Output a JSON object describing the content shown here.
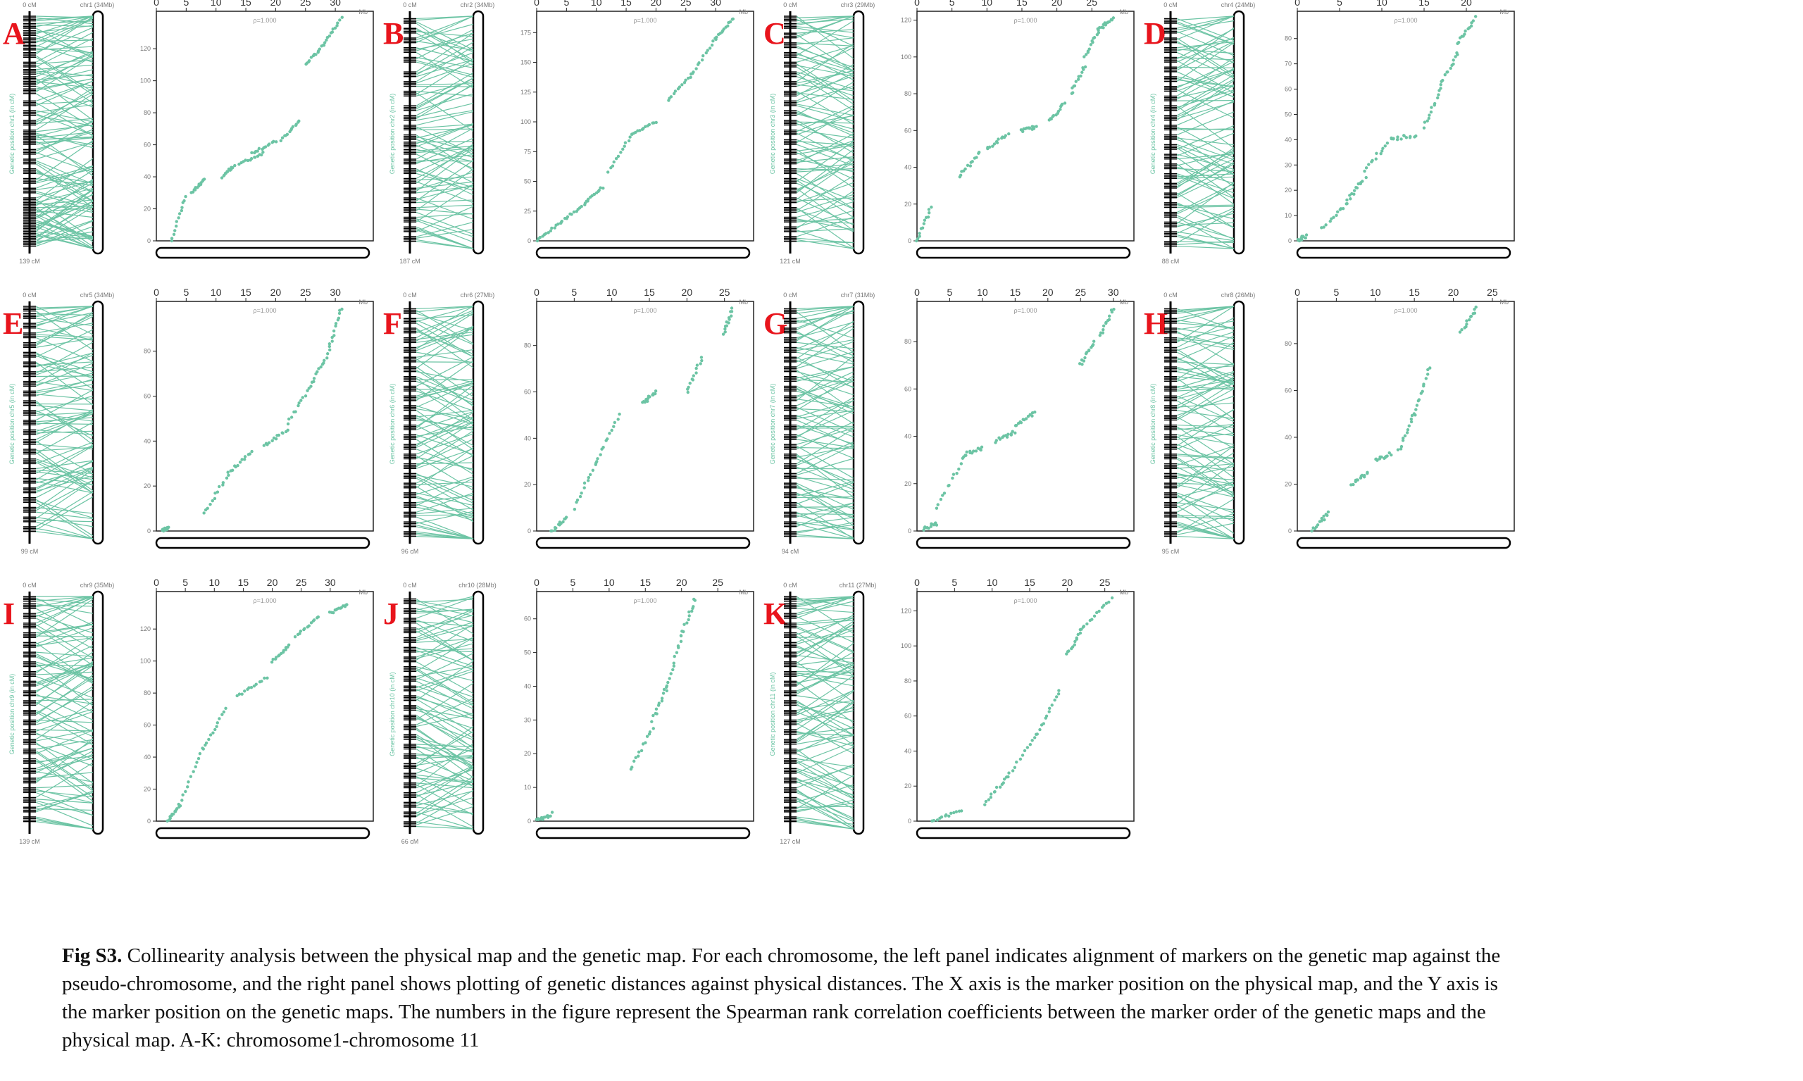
{
  "figure": {
    "color": "#6cc4a4",
    "rho_label": "ρ=1.000",
    "panels": [
      {
        "letter": "A",
        "chr_label": "chr1 (34Mb)",
        "top_cm": "0 cM",
        "bottom_cm": "139 cM",
        "ylabel": "Genetic position chr1 (in cM)",
        "xticks": [
          0,
          5,
          10,
          15,
          20,
          25,
          30
        ],
        "xmax": 34,
        "yticks": [
          0,
          20,
          40,
          60,
          80,
          100,
          120
        ],
        "ymax": 139,
        "segments": [
          [
            2.5,
            0,
            5,
            28
          ],
          [
            6,
            30,
            8,
            38
          ],
          [
            11,
            40,
            13,
            47
          ],
          [
            14,
            48,
            18,
            55
          ],
          [
            16,
            55,
            20,
            62
          ],
          [
            21,
            63,
            24,
            75
          ],
          [
            25,
            110,
            28,
            122
          ],
          [
            28,
            123,
            31,
            139
          ]
        ],
        "markers": [
          0.03,
          0.06,
          0.09,
          0.12,
          0.15,
          0.18,
          0.22,
          0.25,
          0.28,
          0.3,
          0.33,
          0.38,
          0.42,
          0.46,
          0.5,
          0.52,
          0.54,
          0.58,
          0.62,
          0.66,
          0.7,
          0.74,
          0.78,
          0.8,
          0.82,
          0.84,
          0.86,
          0.88,
          0.9,
          0.92,
          0.94,
          0.96
        ]
      },
      {
        "letter": "B",
        "chr_label": "chr2 (34Mb)",
        "top_cm": "0 cM",
        "bottom_cm": "187 cM",
        "ylabel": "Genetic position chr2 (in cM)",
        "xticks": [
          0,
          5,
          10,
          15,
          20,
          25,
          30
        ],
        "xmax": 34,
        "yticks": [
          0,
          25,
          50,
          75,
          100,
          125,
          150,
          175
        ],
        "ymax": 187,
        "segments": [
          [
            0,
            0,
            4,
            15
          ],
          [
            4,
            16,
            8,
            30
          ],
          [
            8,
            32,
            11,
            45
          ],
          [
            12,
            58,
            16,
            90
          ],
          [
            16,
            90,
            20,
            100
          ],
          [
            22,
            118,
            26,
            140
          ],
          [
            26,
            140,
            30,
            170
          ],
          [
            30,
            170,
            33,
            187
          ]
        ],
        "markers": [
          0.04,
          0.08,
          0.12,
          0.16,
          0.2,
          0.26,
          0.3,
          0.34,
          0.4,
          0.44,
          0.48,
          0.52,
          0.55,
          0.58,
          0.62,
          0.66,
          0.7,
          0.74,
          0.78,
          0.82,
          0.86,
          0.9,
          0.94
        ]
      },
      {
        "letter": "C",
        "chr_label": "chr3 (29Mb)",
        "top_cm": "0 cM",
        "bottom_cm": "121 cM",
        "ylabel": "Genetic position chr3 (in cM)",
        "xticks": [
          0,
          5,
          10,
          15,
          20,
          25
        ],
        "xmax": 29,
        "yticks": [
          0,
          20,
          40,
          60,
          80,
          100,
          120
        ],
        "ymax": 121,
        "segments": [
          [
            0,
            0,
            2,
            18
          ],
          [
            6,
            35,
            9,
            48
          ],
          [
            10,
            50,
            13,
            58
          ],
          [
            15,
            60,
            17,
            62
          ],
          [
            19,
            65,
            21,
            75
          ],
          [
            22,
            80,
            24,
            95
          ],
          [
            24,
            100,
            26,
            115
          ],
          [
            26,
            115,
            28,
            121
          ]
        ],
        "markers": [
          0.03,
          0.06,
          0.1,
          0.14,
          0.18,
          0.22,
          0.26,
          0.3,
          0.34,
          0.38,
          0.42,
          0.46,
          0.5,
          0.54,
          0.58,
          0.62,
          0.66,
          0.7,
          0.74,
          0.78,
          0.82,
          0.86,
          0.9,
          0.94
        ]
      },
      {
        "letter": "D",
        "chr_label": "chr4 (24Mb)",
        "top_cm": "0 cM",
        "bottom_cm": "88 cM",
        "ylabel": "Genetic position chr4 (in cM)",
        "xticks": [
          0,
          5,
          10,
          15,
          20
        ],
        "xmax": 24,
        "yticks": [
          0,
          10,
          20,
          30,
          40,
          50,
          60,
          70,
          80
        ],
        "ymax": 88,
        "segments": [
          [
            0,
            0,
            1,
            2
          ],
          [
            3,
            5,
            6,
            15
          ],
          [
            6,
            16,
            8,
            25
          ],
          [
            8,
            28,
            11,
            40
          ],
          [
            11,
            40,
            14,
            42
          ],
          [
            15,
            45,
            17,
            60
          ],
          [
            17,
            62,
            19,
            75
          ],
          [
            19,
            78,
            21,
            88
          ]
        ],
        "markers": [
          0.04,
          0.08,
          0.12,
          0.16,
          0.2,
          0.24,
          0.28,
          0.32,
          0.36,
          0.4,
          0.44,
          0.48,
          0.52,
          0.56,
          0.6,
          0.64,
          0.68,
          0.72,
          0.76,
          0.8,
          0.84,
          0.88,
          0.92,
          0.96
        ]
      },
      {
        "letter": "E",
        "chr_label": "chr5 (34Mb)",
        "top_cm": "0 cM",
        "bottom_cm": "99 cM",
        "ylabel": "Genetic position chr5 (in cM)",
        "xticks": [
          0,
          5,
          10,
          15,
          20,
          25,
          30
        ],
        "xmax": 34,
        "yticks": [
          0,
          20,
          40,
          60,
          80
        ],
        "ymax": 99,
        "segments": [
          [
            1,
            0,
            2,
            2
          ],
          [
            8,
            8,
            12,
            25
          ],
          [
            12,
            26,
            16,
            35
          ],
          [
            18,
            38,
            22,
            45
          ],
          [
            22,
            48,
            26,
            65
          ],
          [
            26,
            66,
            29,
            80
          ],
          [
            29,
            82,
            31,
            99
          ]
        ],
        "markers": [
          0.03,
          0.06,
          0.1,
          0.14,
          0.18,
          0.22,
          0.26,
          0.3,
          0.34,
          0.38,
          0.42,
          0.46,
          0.5,
          0.54,
          0.58,
          0.62,
          0.66,
          0.7,
          0.74,
          0.78,
          0.82,
          0.86,
          0.9,
          0.94
        ]
      },
      {
        "letter": "F",
        "chr_label": "chr6 (27Mb)",
        "top_cm": "0 cM",
        "bottom_cm": "96 cM",
        "ylabel": "Genetic position chr6 (in cM)",
        "xticks": [
          0,
          5,
          10,
          15,
          20,
          25
        ],
        "xmax": 27,
        "yticks": [
          0,
          20,
          40,
          60,
          80
        ],
        "ymax": 96,
        "segments": [
          [
            2,
            0,
            4,
            6
          ],
          [
            5,
            10,
            8,
            30
          ],
          [
            8,
            30,
            11,
            50
          ],
          [
            14,
            55,
            16,
            60
          ],
          [
            20,
            60,
            22,
            75
          ],
          [
            25,
            85,
            26,
            96
          ]
        ],
        "markers": [
          0.04,
          0.08,
          0.12,
          0.16,
          0.2,
          0.24,
          0.28,
          0.32,
          0.36,
          0.4,
          0.44,
          0.48,
          0.52,
          0.56,
          0.6,
          0.64,
          0.68,
          0.72,
          0.76,
          0.8,
          0.84,
          0.88,
          0.92,
          0.96
        ]
      },
      {
        "letter": "G",
        "chr_label": "chr7 (31Mb)",
        "top_cm": "0 cM",
        "bottom_cm": "94 cM",
        "ylabel": "Genetic position chr7 (in cM)",
        "xticks": [
          0,
          5,
          10,
          15,
          20,
          25,
          30
        ],
        "xmax": 31,
        "yticks": [
          0,
          20,
          40,
          60,
          80
        ],
        "ymax": 94,
        "segments": [
          [
            1,
            1,
            3,
            3
          ],
          [
            3,
            10,
            7,
            30
          ],
          [
            7,
            32,
            10,
            35
          ],
          [
            12,
            38,
            15,
            42
          ],
          [
            15,
            44,
            18,
            50
          ],
          [
            25,
            70,
            27,
            80
          ],
          [
            28,
            82,
            30,
            94
          ]
        ],
        "markers": [
          0.04,
          0.08,
          0.12,
          0.16,
          0.2,
          0.24,
          0.28,
          0.32,
          0.36,
          0.4,
          0.44,
          0.48,
          0.52,
          0.56,
          0.6,
          0.64,
          0.68,
          0.72,
          0.76,
          0.8,
          0.84,
          0.88,
          0.92,
          0.96
        ]
      },
      {
        "letter": "H",
        "chr_label": "chr8 (26Mb)",
        "top_cm": "0 cM",
        "bottom_cm": "95 cM",
        "ylabel": "Genetic position chr8 (in cM)",
        "xticks": [
          0,
          5,
          10,
          15,
          20,
          25
        ],
        "xmax": 26,
        "yticks": [
          0,
          20,
          40,
          60,
          80
        ],
        "ymax": 95,
        "segments": [
          [
            2,
            0,
            4,
            8
          ],
          [
            7,
            20,
            9,
            25
          ],
          [
            10,
            30,
            12,
            33
          ],
          [
            13,
            34,
            15,
            50
          ],
          [
            15,
            50,
            17,
            70
          ],
          [
            21,
            85,
            23,
            95
          ]
        ],
        "markers": [
          0.04,
          0.08,
          0.12,
          0.16,
          0.2,
          0.24,
          0.28,
          0.32,
          0.36,
          0.4,
          0.44,
          0.48,
          0.52,
          0.56,
          0.6,
          0.64,
          0.68,
          0.72,
          0.76,
          0.8,
          0.84,
          0.88,
          0.92,
          0.96
        ]
      },
      {
        "letter": "I",
        "chr_label": "chr9 (35Mb)",
        "top_cm": "0 cM",
        "bottom_cm": "139 cM",
        "ylabel": "Genetic position chr9 (in cM)",
        "xticks": [
          0,
          5,
          10,
          15,
          20,
          25,
          30
        ],
        "xmax": 35,
        "yticks": [
          0,
          20,
          40,
          60,
          80,
          100,
          120
        ],
        "ymax": 139,
        "segments": [
          [
            2,
            0,
            4,
            10
          ],
          [
            4,
            10,
            8,
            45
          ],
          [
            8,
            45,
            12,
            70
          ],
          [
            14,
            78,
            19,
            90
          ],
          [
            20,
            100,
            23,
            110
          ],
          [
            24,
            115,
            28,
            128
          ],
          [
            30,
            130,
            33,
            135
          ]
        ],
        "markers": [
          0.03,
          0.06,
          0.1,
          0.14,
          0.18,
          0.22,
          0.26,
          0.3,
          0.34,
          0.38,
          0.42,
          0.46,
          0.5,
          0.54,
          0.58,
          0.62,
          0.66,
          0.7,
          0.74,
          0.78,
          0.82,
          0.86,
          0.9,
          0.94
        ]
      },
      {
        "letter": "J",
        "chr_label": "chr10 (28Mb)",
        "top_cm": "0 cM",
        "bottom_cm": "66 cM",
        "ylabel": "Genetic position chr10 (in cM)",
        "xticks": [
          0,
          5,
          10,
          15,
          20,
          25
        ],
        "xmax": 28,
        "yticks": [
          0,
          10,
          20,
          30,
          40,
          50,
          60
        ],
        "ymax": 66,
        "segments": [
          [
            0,
            0,
            2,
            2
          ],
          [
            13,
            15,
            16,
            28
          ],
          [
            16,
            30,
            18,
            40
          ],
          [
            18,
            40,
            20,
            55
          ],
          [
            20,
            55,
            22,
            66
          ]
        ],
        "markers": [
          0.04,
          0.08,
          0.12,
          0.16,
          0.2,
          0.24,
          0.28,
          0.32,
          0.36,
          0.4,
          0.44,
          0.48,
          0.52,
          0.56,
          0.6,
          0.64,
          0.68,
          0.72,
          0.76,
          0.8,
          0.84,
          0.88,
          0.92,
          0.96
        ]
      },
      {
        "letter": "K",
        "chr_label": "chr11 (27Mb)",
        "top_cm": "0 cM",
        "bottom_cm": "127 cM",
        "ylabel": "Genetic position chr11 (in cM)",
        "xticks": [
          0,
          5,
          10,
          15,
          20,
          25
        ],
        "xmax": 27,
        "yticks": [
          0,
          20,
          40,
          60,
          80,
          100,
          120
        ],
        "ymax": 127,
        "segments": [
          [
            2,
            0,
            6,
            6
          ],
          [
            9,
            10,
            12,
            25
          ],
          [
            12,
            25,
            16,
            50
          ],
          [
            16,
            50,
            19,
            75
          ],
          [
            20,
            95,
            22,
            110
          ],
          [
            22,
            110,
            26,
            127
          ]
        ],
        "markers": [
          0.03,
          0.06,
          0.1,
          0.14,
          0.18,
          0.22,
          0.26,
          0.3,
          0.34,
          0.38,
          0.42,
          0.46,
          0.5,
          0.54,
          0.58,
          0.62,
          0.66,
          0.7,
          0.74,
          0.78,
          0.82,
          0.86,
          0.9,
          0.94
        ]
      }
    ]
  },
  "caption": {
    "bold": "Fig S3.",
    "text": " Collinearity analysis between the physical map and the genetic map. For each chromosome, the left panel indicates alignment of markers on the genetic map against the pseudo-chromosome, and the right panel shows plotting of genetic distances against physical distances. The X axis is the marker position on the physical map, and the Y axis is the marker position on the genetic maps. The numbers in the figure represent the Spearman rank correlation coefficients between the marker order of the genetic maps and the physical map. A-K: chromosome1-chromosome 11"
  }
}
